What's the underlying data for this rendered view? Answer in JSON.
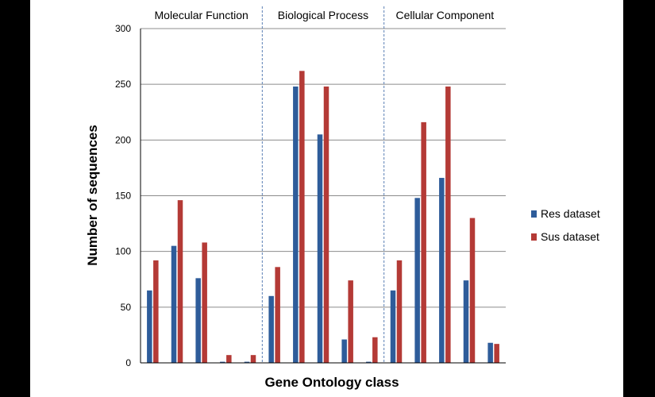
{
  "chart_data": {
    "type": "bar",
    "title": "",
    "xlabel": "Gene Ontology class",
    "ylabel": "Number of sequences",
    "ylim": [
      0,
      300
    ],
    "yticks": [
      0,
      50,
      100,
      150,
      200,
      250,
      300
    ],
    "grid": true,
    "legend_position": "right",
    "groups": [
      "Molecular Function",
      "Biological Process",
      "Cellular  Component"
    ],
    "group_sizes": [
      5,
      5,
      5
    ],
    "series": [
      {
        "name": "Res dataset",
        "color": "#2e5c9a",
        "values": [
          65,
          105,
          76,
          1,
          1,
          60,
          248,
          205,
          21,
          1,
          65,
          148,
          166,
          74,
          18
        ]
      },
      {
        "name": "Sus dataset",
        "color": "#b43a36",
        "values": [
          92,
          146,
          108,
          7,
          7,
          86,
          262,
          248,
          74,
          23,
          92,
          216,
          248,
          130,
          17
        ]
      }
    ]
  }
}
